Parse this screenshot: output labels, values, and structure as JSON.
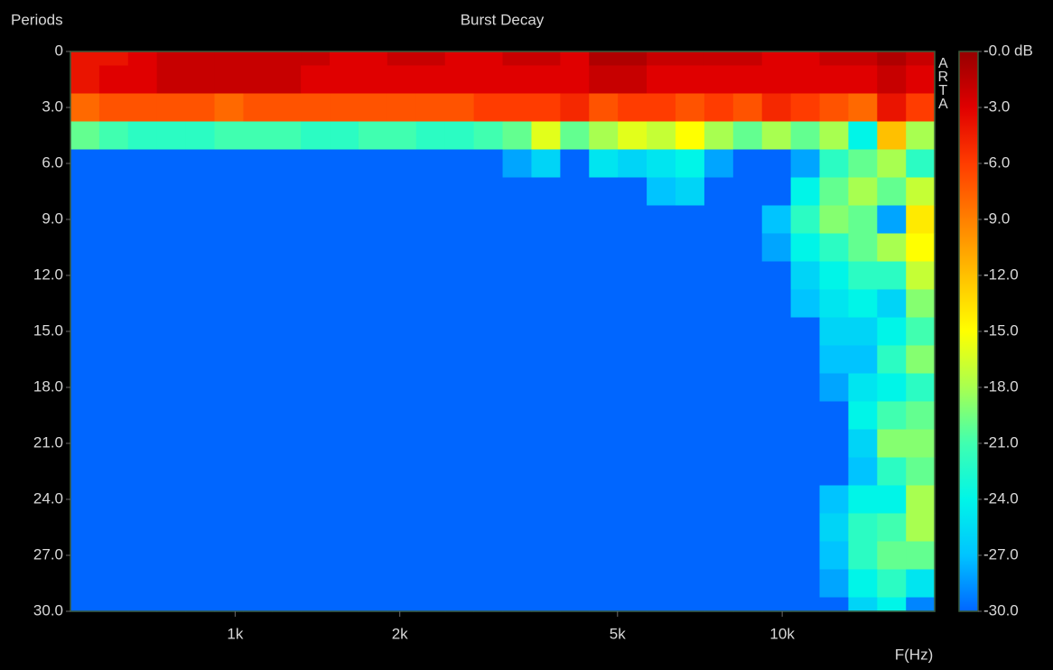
{
  "chart_data": {
    "type": "heatmap",
    "title": "Burst Decay",
    "ylabel": "Periods",
    "xlabel": "F(Hz)",
    "watermark": "ARTA",
    "xscale": "log",
    "xlim": [
      500,
      19000
    ],
    "xticks": [
      {
        "value": 1000,
        "label": "1k"
      },
      {
        "value": 2000,
        "label": "2k"
      },
      {
        "value": 5000,
        "label": "5k"
      },
      {
        "value": 10000,
        "label": "10k"
      }
    ],
    "ylim": [
      0,
      30
    ],
    "yticks": [
      0,
      {
        "value": 3,
        "label": "3.0"
      },
      {
        "value": 6,
        "label": "6.0"
      },
      {
        "value": 9,
        "label": "9.0"
      },
      {
        "value": 12,
        "label": "12.0"
      },
      {
        "value": 15,
        "label": "15.0"
      },
      {
        "value": 18,
        "label": "18.0"
      },
      {
        "value": 21,
        "label": "21.0"
      },
      {
        "value": 24,
        "label": "24.0"
      },
      {
        "value": 27,
        "label": "27.0"
      },
      {
        "value": 30,
        "label": "30.0"
      }
    ],
    "zlim": [
      -30,
      0
    ],
    "zticks": [
      {
        "value": 0,
        "label": "-0.0 dB"
      },
      {
        "value": -3,
        "label": "-3.0"
      },
      {
        "value": -6,
        "label": "-6.0"
      },
      {
        "value": -9,
        "label": "-9.0"
      },
      {
        "value": -12,
        "label": "-12.0"
      },
      {
        "value": -15,
        "label": "-15.0"
      },
      {
        "value": -18,
        "label": "-18.0"
      },
      {
        "value": -21,
        "label": "-21.0"
      },
      {
        "value": -24,
        "label": "-24.0"
      },
      {
        "value": -27,
        "label": "-27.0"
      },
      {
        "value": -30,
        "label": "-30.0"
      }
    ],
    "colormap": [
      "#0066ff",
      "#00c4ff",
      "#00f5e8",
      "#40ffb0",
      "#a8ff50",
      "#ffff00",
      "#ffc000",
      "#ff8000",
      "#ff3c00",
      "#e00000",
      "#960000"
    ],
    "x": [
      531,
      600,
      677,
      764,
      863,
      974,
      1100,
      1241,
      1401,
      1582,
      1786,
      2016,
      2276,
      2570,
      2901,
      3276,
      3698,
      4175,
      4713,
      5321,
      6007,
      6782,
      7656,
      8643,
      9757,
      11015,
      12435,
      14037,
      15848,
      17891
    ],
    "y": [
      0,
      1.5,
      3,
      4.5,
      6,
      7.5,
      9,
      10.5,
      12,
      13.5,
      15,
      16.5,
      18,
      19.5,
      21,
      22.5,
      24,
      25.5,
      27,
      28.5,
      30
    ],
    "z": [
      [
        -4,
        -4,
        -3,
        -2,
        -2,
        -2,
        -2,
        -2,
        -2,
        -3,
        -3,
        -2,
        -2,
        -3,
        -3,
        -2,
        -2,
        -3,
        -1,
        -1,
        -2,
        -2,
        -2,
        -2,
        -3,
        -3,
        -2,
        -2,
        -1,
        -2
      ],
      [
        -4,
        -3,
        -3,
        -2,
        -2,
        -2,
        -2,
        -2,
        -3,
        -3,
        -3,
        -3,
        -3,
        -3,
        -3,
        -3,
        -3,
        -3,
        -2,
        -2,
        -3,
        -3,
        -3,
        -3,
        -3,
        -3,
        -3,
        -3,
        -2,
        -3
      ],
      [
        -8,
        -7,
        -7,
        -7,
        -7,
        -8,
        -7,
        -7,
        -7,
        -7,
        -7,
        -7,
        -7,
        -7,
        -6,
        -6,
        -6,
        -5,
        -7,
        -6,
        -6,
        -7,
        -6,
        -7,
        -5,
        -6,
        -7,
        -8,
        -4,
        -6
      ],
      [
        -20,
        -21,
        -22,
        -22,
        -22,
        -21,
        -21,
        -21,
        -22,
        -22,
        -21,
        -21,
        -22,
        -22,
        -21,
        -20,
        -16,
        -20,
        -18,
        -16,
        -17,
        -15,
        -18,
        -20,
        -18,
        -20,
        -18,
        -24,
        -12,
        -18
      ],
      [
        -30,
        -30,
        -30,
        -30,
        -30,
        -30,
        -30,
        -30,
        -30,
        -30,
        -30,
        -30,
        -30,
        -30,
        -30,
        -28,
        -26,
        -30,
        -25,
        -26,
        -25,
        -24,
        -28,
        -30,
        -30,
        -28,
        -22,
        -20,
        -18,
        -22
      ],
      [
        -30,
        -30,
        -30,
        -30,
        -30,
        -30,
        -30,
        -30,
        -30,
        -30,
        -30,
        -30,
        -30,
        -30,
        -30,
        -30,
        -30,
        -30,
        -30,
        -30,
        -27,
        -26,
        -30,
        -30,
        -30,
        -24,
        -20,
        -18,
        -20,
        -17
      ],
      [
        -30,
        -30,
        -30,
        -30,
        -30,
        -30,
        -30,
        -30,
        -30,
        -30,
        -30,
        -30,
        -30,
        -30,
        -30,
        -30,
        -30,
        -30,
        -30,
        -30,
        -30,
        -30,
        -30,
        -30,
        -27,
        -22,
        -19,
        -20,
        -28,
        -14
      ],
      [
        -30,
        -30,
        -30,
        -30,
        -30,
        -30,
        -30,
        -30,
        -30,
        -30,
        -30,
        -30,
        -30,
        -30,
        -30,
        -30,
        -30,
        -30,
        -30,
        -30,
        -30,
        -30,
        -30,
        -30,
        -28,
        -24,
        -22,
        -20,
        -18,
        -15
      ],
      [
        -30,
        -30,
        -30,
        -30,
        -30,
        -30,
        -30,
        -30,
        -30,
        -30,
        -30,
        -30,
        -30,
        -30,
        -30,
        -30,
        -30,
        -30,
        -30,
        -30,
        -30,
        -30,
        -30,
        -30,
        -30,
        -26,
        -24,
        -22,
        -22,
        -17
      ],
      [
        -30,
        -30,
        -30,
        -30,
        -30,
        -30,
        -30,
        -30,
        -30,
        -30,
        -30,
        -30,
        -30,
        -30,
        -30,
        -30,
        -30,
        -30,
        -30,
        -30,
        -30,
        -30,
        -30,
        -30,
        -30,
        -27,
        -25,
        -24,
        -26,
        -19
      ],
      [
        -30,
        -30,
        -30,
        -30,
        -30,
        -30,
        -30,
        -30,
        -30,
        -30,
        -30,
        -30,
        -30,
        -30,
        -30,
        -30,
        -30,
        -30,
        -30,
        -30,
        -30,
        -30,
        -30,
        -30,
        -30,
        -30,
        -26,
        -26,
        -24,
        -21
      ],
      [
        -30,
        -30,
        -30,
        -30,
        -30,
        -30,
        -30,
        -30,
        -30,
        -30,
        -30,
        -30,
        -30,
        -30,
        -30,
        -30,
        -30,
        -30,
        -30,
        -30,
        -30,
        -30,
        -30,
        -30,
        -30,
        -30,
        -27,
        -27,
        -22,
        -19
      ],
      [
        -30,
        -30,
        -30,
        -30,
        -30,
        -30,
        -30,
        -30,
        -30,
        -30,
        -30,
        -30,
        -30,
        -30,
        -30,
        -30,
        -30,
        -30,
        -30,
        -30,
        -30,
        -30,
        -30,
        -30,
        -30,
        -30,
        -28,
        -25,
        -24,
        -22
      ],
      [
        -30,
        -30,
        -30,
        -30,
        -30,
        -30,
        -30,
        -30,
        -30,
        -30,
        -30,
        -30,
        -30,
        -30,
        -30,
        -30,
        -30,
        -30,
        -30,
        -30,
        -30,
        -30,
        -30,
        -30,
        -30,
        -30,
        -30,
        -24,
        -21,
        -20
      ],
      [
        -30,
        -30,
        -30,
        -30,
        -30,
        -30,
        -30,
        -30,
        -30,
        -30,
        -30,
        -30,
        -30,
        -30,
        -30,
        -30,
        -30,
        -30,
        -30,
        -30,
        -30,
        -30,
        -30,
        -30,
        -30,
        -30,
        -30,
        -26,
        -19,
        -19
      ],
      [
        -30,
        -30,
        -30,
        -30,
        -30,
        -30,
        -30,
        -30,
        -30,
        -30,
        -30,
        -30,
        -30,
        -30,
        -30,
        -30,
        -30,
        -30,
        -30,
        -30,
        -30,
        -30,
        -30,
        -30,
        -30,
        -30,
        -30,
        -27,
        -22,
        -20
      ],
      [
        -30,
        -30,
        -30,
        -30,
        -30,
        -30,
        -30,
        -30,
        -30,
        -30,
        -30,
        -30,
        -30,
        -30,
        -30,
        -30,
        -30,
        -30,
        -30,
        -30,
        -30,
        -30,
        -30,
        -30,
        -30,
        -30,
        -27,
        -24,
        -24,
        -18
      ],
      [
        -30,
        -30,
        -30,
        -30,
        -30,
        -30,
        -30,
        -30,
        -30,
        -30,
        -30,
        -30,
        -30,
        -30,
        -30,
        -30,
        -30,
        -30,
        -30,
        -30,
        -30,
        -30,
        -30,
        -30,
        -30,
        -30,
        -26,
        -22,
        -21,
        -18
      ],
      [
        -30,
        -30,
        -30,
        -30,
        -30,
        -30,
        -30,
        -30,
        -30,
        -30,
        -30,
        -30,
        -30,
        -30,
        -30,
        -30,
        -30,
        -30,
        -30,
        -30,
        -30,
        -30,
        -30,
        -30,
        -30,
        -30,
        -27,
        -22,
        -20,
        -20
      ],
      [
        -30,
        -30,
        -30,
        -30,
        -30,
        -30,
        -30,
        -30,
        -30,
        -30,
        -30,
        -30,
        -30,
        -30,
        -30,
        -30,
        -30,
        -30,
        -30,
        -30,
        -30,
        -30,
        -30,
        -30,
        -30,
        -30,
        -28,
        -24,
        -22,
        -25
      ],
      [
        -30,
        -30,
        -30,
        -30,
        -30,
        -30,
        -30,
        -30,
        -30,
        -30,
        -30,
        -30,
        -30,
        -30,
        -30,
        -30,
        -30,
        -30,
        -30,
        -30,
        -30,
        -30,
        -30,
        -30,
        -30,
        -30,
        -30,
        -26,
        -24,
        -29
      ]
    ]
  }
}
